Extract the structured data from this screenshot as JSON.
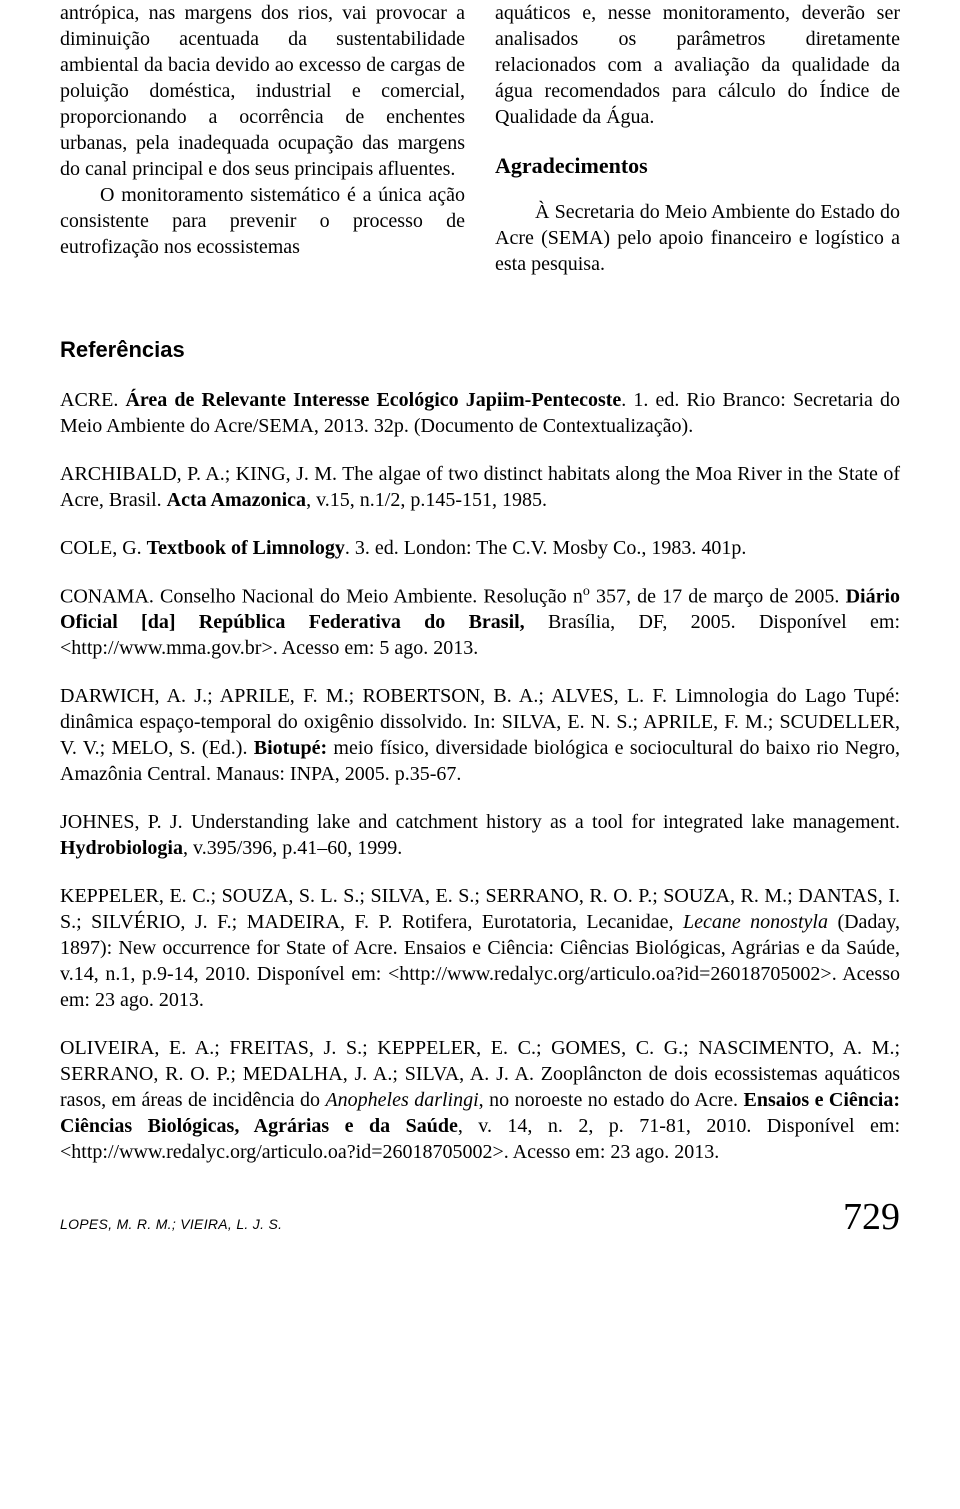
{
  "body": {
    "left_col": {
      "p1": "antrópica, nas margens dos rios, vai provocar a diminuição acentuada da sustentabilidade ambiental da bacia devido ao excesso de cargas de poluição doméstica, industrial e comercial, proporcionando a ocorrência de enchentes urbanas, pela inadequada ocupação das margens do canal principal e dos seus principais afluentes.",
      "p2": "O monitoramento sistemático é a única ação consistente para prevenir o processo de eutrofização nos ecossistemas"
    },
    "right_col": {
      "p1": "aquáticos e, nesse monitoramento, deverão ser analisados os parâmetros diretamente relacionados com a avaliação da qualidade da água recomendados para cálculo do Índice de Qualidade da Água.",
      "heading": "Agradecimentos",
      "p2": "À Secretaria do Meio Ambiente do Estado do Acre (SEMA) pelo apoio financeiro e logístico a esta pesquisa."
    }
  },
  "refs": {
    "heading": "Referências",
    "items": {
      "r1_a": "ACRE. ",
      "r1_b": "Área de Relevante Interesse Ecológico Japiim-Pentecoste",
      "r1_c": ". 1. ed. Rio Branco: Secretaria do Meio Ambiente do Acre/SEMA, 2013. 32p. (Documento de Contextualização).",
      "r2_a": "ARCHIBALD, P. A.; KING, J. M. The algae of two distinct habitats along the Moa River in the State of Acre, Brasil. ",
      "r2_b": "Acta Amazonica",
      "r2_c": ", v.15, n.1/2, p.145-151, 1985.",
      "r3_a": "COLE, G. ",
      "r3_b": "Textbook of Limnology",
      "r3_c": ". 3. ed. London: The C.V. Mosby Co., 1983. 401p.",
      "r4_a": "CONAMA. Conselho Nacional do Meio Ambiente. Resolução n",
      "r4_sup": "o",
      "r4_b": " 357, de 17 de março de 2005. ",
      "r4_c": "Diário Oficial [da] República Federativa do Brasil,",
      "r4_d": " Brasília, DF, 2005. Disponível em: <http://www.mma.gov.br>. Acesso em: 5 ago. 2013.",
      "r5_a": "DARWICH, A. J.; APRILE, F. M.; ROBERTSON, B. A.; ALVES, L. F. Limnologia do Lago Tupé: dinâmica espaço-temporal do oxigênio dissolvido. In: SILVA, E. N. S.; APRILE, F. M.; SCUDELLER, V. V.; MELO, S. (Ed.). ",
      "r5_b": "Biotupé:",
      "r5_c": " meio físico, diversidade biológica e sociocultural do baixo rio Negro, Amazônia Central. Manaus: INPA, 2005. p.35-67.",
      "r6_a": "JOHNES, P. J. Understanding lake and catchment history as a tool for integrated lake management. ",
      "r6_b": "Hydrobiologia",
      "r6_c": ", v.395/396, p.41–60, 1999.",
      "r7_a": "KEPPELER, E. C.; SOUZA, S. L. S.; SILVA, E. S.; SERRANO, R. O. P.; SOUZA, R. M.; DANTAS, I. S.; SILVÉRIO, J. F.; MADEIRA, F. P. Rotifera, Eurotatoria, Lecanidae, ",
      "r7_b": "Lecane nonostyla",
      "r7_c": " (Daday, 1897): New occurrence for State of Acre. Ensaios e Ciência: Ciências Biológicas, Agrárias e da Saúde, v.14, n.1, p.9-14, 2010. Disponível em: <http://www.redalyc.org/articulo.oa?id=26018705002>. Acesso em: 23 ago. 2013.",
      "r8_a": "OLIVEIRA, E. A.; FREITAS, J. S.; KEPPELER, E. C.; GOMES, C. G.; NASCIMENTO, A. M.; SERRANO, R. O. P.; MEDALHA, J. A.; SILVA, A. J. A. Zooplâncton de dois ecossistemas aquáticos rasos, em áreas de incidência do ",
      "r8_b": "Anopheles darlingi",
      "r8_c": ", no noroeste no estado do Acre. ",
      "r8_d": "Ensaios e Ciência: Ciências Biológicas, Agrárias e da Saúde",
      "r8_e": ", v. 14, n. 2, p. 71-81, 2010. Disponível em: <http://www.redalyc.org/articulo.oa?id=26018705002>. Acesso em: 23 ago. 2013."
    }
  },
  "footer": {
    "authors": "LOPES, M. R. M.; VIEIRA, L. J. S.",
    "page": "729"
  }
}
